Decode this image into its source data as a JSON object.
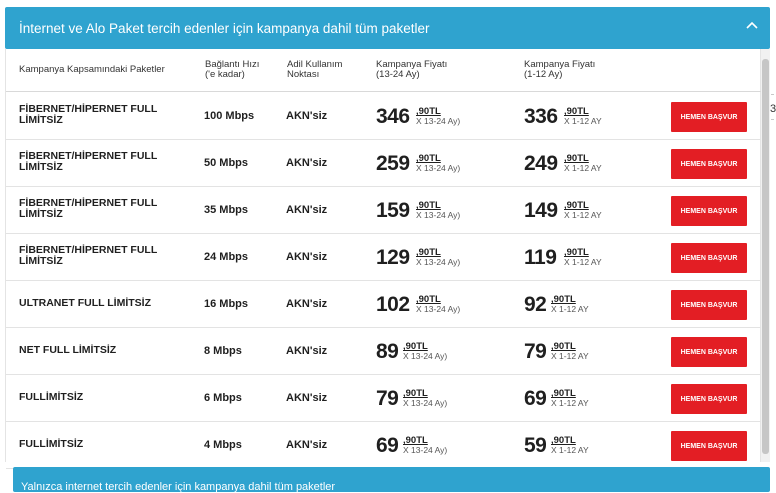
{
  "accordion": {
    "title": "İnternet ve Alo Paket tercih edenler için kampanya dahil tüm paketler",
    "toggle_icon": "chevron-up-icon"
  },
  "table": {
    "headers": {
      "package": "Kampanya Kapsamındaki Paketler",
      "speed": [
        "Bağlantı Hızı",
        "('e kadar)"
      ],
      "akn": [
        "Adil Kullanım",
        "Noktası"
      ],
      "price1": [
        "Kampanya Fiyatı",
        "(13-24 Ay)"
      ],
      "price2": [
        "Kampanya Fiyatı",
        "(1-12 Ay)"
      ]
    },
    "rows": [
      {
        "pkg": [
          "FİBERNET/HİPERNET FULL",
          "LİMİTSİZ"
        ],
        "speed": "100 Mbps",
        "akn": "AKN'siz",
        "p1": {
          "main": "346",
          "dec": ",90TL",
          "term": "X 13-24 Ay)"
        },
        "p2": {
          "main": "336",
          "dec": ",90TL",
          "term": "X 1-12 AY"
        },
        "btn": "HEMEN BAŞVUR"
      },
      {
        "pkg": [
          "FİBERNET/HİPERNET FULL",
          "LİMİTSİZ"
        ],
        "speed": "50 Mbps",
        "akn": "AKN'siz",
        "p1": {
          "main": "259",
          "dec": ",90TL",
          "term": "X 13-24 Ay)"
        },
        "p2": {
          "main": "249",
          "dec": ",90TL",
          "term": "X 1-12 AY"
        },
        "btn": "HEMEN BAŞVUR"
      },
      {
        "pkg": [
          "FİBERNET/HİPERNET FULL",
          "LİMİTSİZ"
        ],
        "speed": "35 Mbps",
        "akn": "AKN'siz",
        "p1": {
          "main": "159",
          "dec": ",90TL",
          "term": "X 13-24 Ay)"
        },
        "p2": {
          "main": "149",
          "dec": ",90TL",
          "term": "X 1-12 AY"
        },
        "btn": "HEMEN BAŞVUR"
      },
      {
        "pkg": [
          "FİBERNET/HİPERNET FULL",
          "LİMİTSİZ"
        ],
        "speed": "24 Mbps",
        "akn": "AKN'siz",
        "p1": {
          "main": "129",
          "dec": ",90TL",
          "term": "X 13-24 Ay)"
        },
        "p2": {
          "main": "119",
          "dec": ",90TL",
          "term": "X 1-12 AY"
        },
        "btn": "HEMEN BAŞVUR"
      },
      {
        "pkg": [
          "ULTRANET FULL LİMİTSİZ"
        ],
        "speed": "16 Mbps",
        "akn": "AKN'siz",
        "p1": {
          "main": "102",
          "dec": ",90TL",
          "term": "X 13-24 Ay)"
        },
        "p2": {
          "main": "92",
          "dec": ",90TL",
          "term": "X 1-12 AY"
        },
        "btn": "HEMEN BAŞVUR"
      },
      {
        "pkg": [
          "NET FULL LİMİTSİZ"
        ],
        "speed": "8 Mbps",
        "akn": "AKN'siz",
        "p1": {
          "main": "89",
          "dec": ",90TL",
          "term": "X 13-24 Ay)"
        },
        "p2": {
          "main": "79",
          "dec": ",90TL",
          "term": "X 1-12 AY"
        },
        "btn": "HEMEN BAŞVUR"
      },
      {
        "pkg": [
          "FULLİMİTSİZ"
        ],
        "speed": "6 Mbps",
        "akn": "AKN'siz",
        "p1": {
          "main": "79",
          "dec": ",90TL",
          "term": "X 13-24 Ay)"
        },
        "p2": {
          "main": "69",
          "dec": ",90TL",
          "term": "X 1-12 AY"
        },
        "btn": "HEMEN BAŞVUR"
      },
      {
        "pkg": [
          "FULLİMİTSİZ"
        ],
        "speed": "4 Mbps",
        "akn": "AKN'siz",
        "p1": {
          "main": "69",
          "dec": ",90TL",
          "term": "X 13-24 Ay)"
        },
        "p2": {
          "main": "59",
          "dec": ",90TL",
          "term": "X 1-12 AY"
        },
        "btn": "HEMEN BAŞVUR"
      }
    ]
  },
  "footer": {
    "partial_text": "Yalnızca internet tercih edenler için kampanya dahil tüm paketler"
  },
  "edge": {
    "char": "3"
  },
  "colors": {
    "accent": "#2fa3cf",
    "button": "#e31e24"
  }
}
